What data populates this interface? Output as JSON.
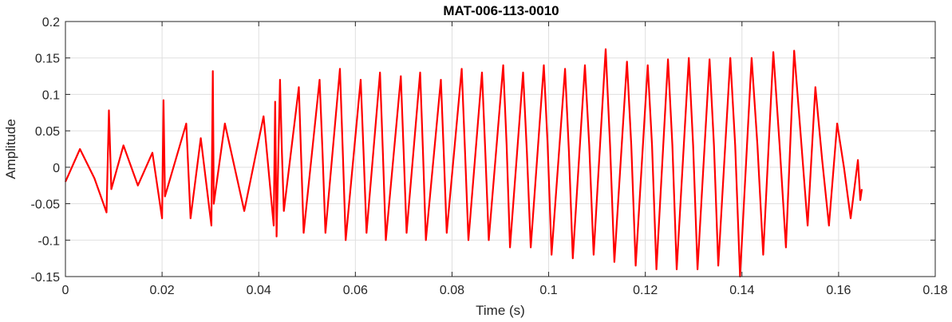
{
  "chart_data": {
    "type": "line",
    "title": "MAT-006-113-0010",
    "xlabel": "Time (s)",
    "ylabel": "Amplitude",
    "xlim": [
      0,
      0.18
    ],
    "ylim": [
      -0.15,
      0.2
    ],
    "x_ticks": [
      "0",
      "0.02",
      "0.04",
      "0.06",
      "0.08",
      "0.1",
      "0.12",
      "0.14",
      "0.16",
      "0.18"
    ],
    "y_ticks": [
      "-0.15",
      "-0.1",
      "-0.05",
      "0",
      "0.05",
      "0.1",
      "0.15",
      "0.2"
    ],
    "grid": true,
    "line_color": "#ff0000",
    "series": [
      {
        "x": [
          0,
          0.003,
          0.006,
          0.0085,
          0.009,
          0.0095,
          0.012,
          0.015,
          0.018,
          0.02,
          0.0203,
          0.0206,
          0.025,
          0.0259,
          0.028,
          0.0302,
          0.0305,
          0.0307,
          0.033,
          0.037,
          0.041,
          0.0431,
          0.0434,
          0.0437,
          0.0444,
          0.0448,
          0.0452,
          0.0483,
          0.0488,
          0.0493,
          0.0526,
          0.0532,
          0.0538,
          0.0568,
          0.0574,
          0.058,
          0.0611,
          0.0617,
          0.0623,
          0.0651,
          0.0657,
          0.0663,
          0.0694,
          0.07,
          0.0706,
          0.0734,
          0.074,
          0.0746,
          0.0777,
          0.0783,
          0.0789,
          0.082,
          0.0827,
          0.0834,
          0.0862,
          0.0869,
          0.0876,
          0.0906,
          0.0913,
          0.092,
          0.0947,
          0.0955,
          0.0963,
          0.099,
          0.0998,
          0.1006,
          0.1034,
          0.1042,
          0.105,
          0.1075,
          0.1084,
          0.1093,
          0.1118,
          0.1127,
          0.1136,
          0.1162,
          0.1171,
          0.118,
          0.1205,
          0.1214,
          0.1223,
          0.1247,
          0.1256,
          0.1265,
          0.129,
          0.1299,
          0.1308,
          0.1333,
          0.1342,
          0.1351,
          0.1376,
          0.1386,
          0.1396,
          0.142,
          0.1432,
          0.1444,
          0.1465,
          0.1478,
          0.1491,
          0.1508,
          0.1522,
          0.1536,
          0.1552,
          0.1566,
          0.158,
          0.1597,
          0.1611,
          0.1625,
          0.164,
          0.1645,
          0.1648
        ],
        "y": [
          -0.02,
          0.025,
          -0.015,
          -0.062,
          0.078,
          -0.03,
          0.03,
          -0.025,
          0.02,
          -0.07,
          0.092,
          -0.04,
          0.06,
          -0.07,
          0.04,
          -0.08,
          0.132,
          -0.05,
          0.06,
          -0.06,
          0.07,
          -0.08,
          0.09,
          -0.095,
          0.12,
          0.02,
          -0.06,
          0.11,
          0.01,
          -0.09,
          0.12,
          0.02,
          -0.09,
          0.135,
          0.02,
          -0.1,
          0.12,
          0.02,
          -0.09,
          0.13,
          0.02,
          -0.1,
          0.125,
          0.02,
          -0.09,
          0.13,
          0.02,
          -0.1,
          0.12,
          0.02,
          -0.09,
          0.135,
          0.02,
          -0.1,
          0.13,
          0.02,
          -0.1,
          0.14,
          0.03,
          -0.11,
          0.13,
          0.02,
          -0.11,
          0.14,
          0.03,
          -0.12,
          0.135,
          0.02,
          -0.125,
          0.14,
          0.03,
          -0.12,
          0.162,
          0.03,
          -0.13,
          0.145,
          0.03,
          -0.135,
          0.14,
          0.03,
          -0.14,
          0.148,
          0.03,
          -0.14,
          0.15,
          0.03,
          -0.14,
          0.148,
          0.03,
          -0.135,
          0.15,
          0.03,
          -0.15,
          0.15,
          0.03,
          -0.12,
          0.158,
          0.03,
          -0.11,
          0.16,
          0.04,
          -0.08,
          0.11,
          0.01,
          -0.08,
          0.06,
          0.0,
          -0.07,
          0.01,
          -0.045,
          -0.03
        ]
      }
    ]
  }
}
